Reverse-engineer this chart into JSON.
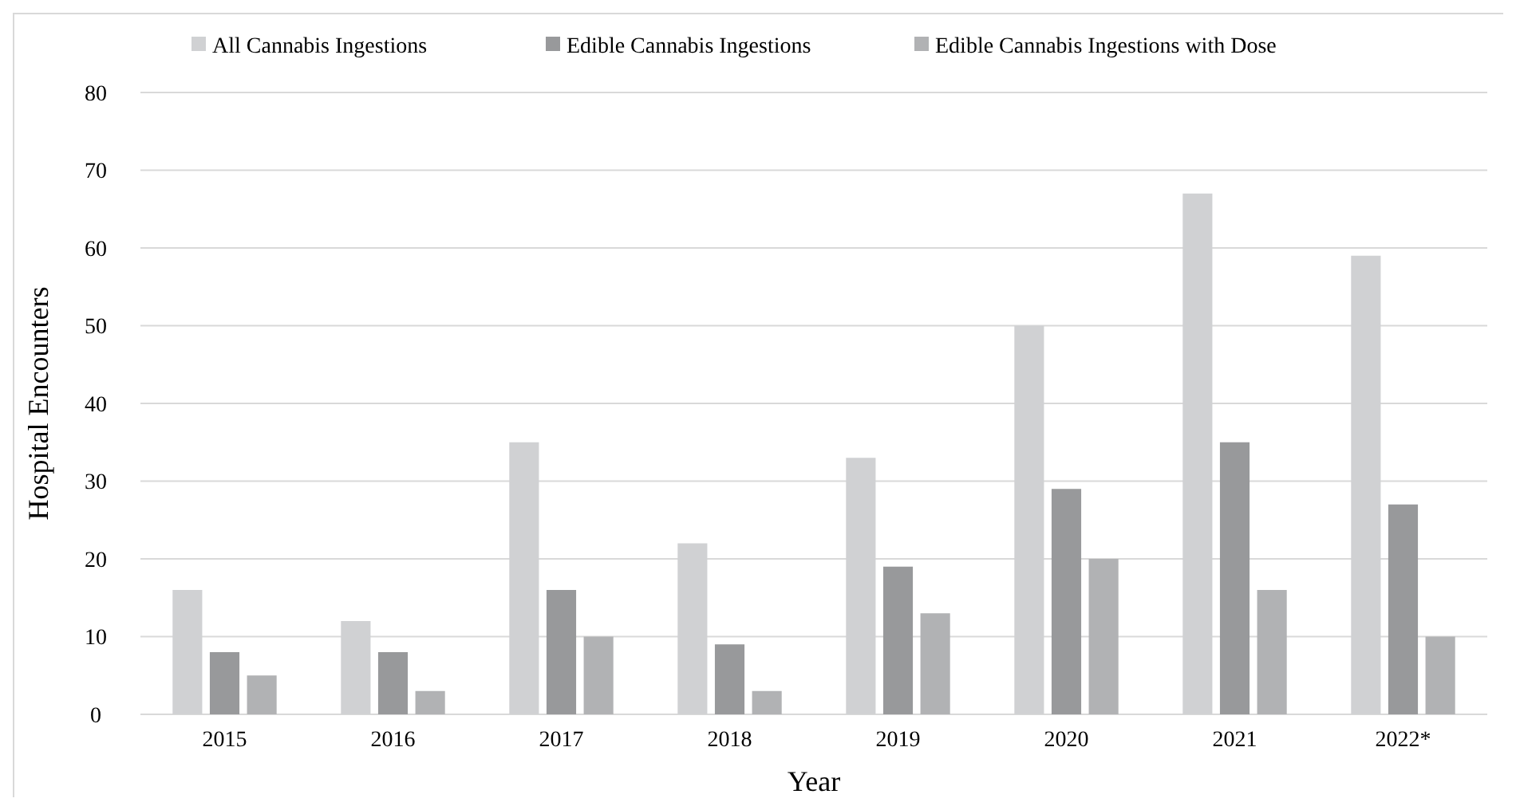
{
  "chart_data": {
    "type": "bar",
    "xlabel": "Year",
    "ylabel": "Hospital Encounters",
    "categories": [
      "2015",
      "2016",
      "2017",
      "2018",
      "2019",
      "2020",
      "2021",
      "2022*"
    ],
    "series": [
      {
        "name": "All Cannabis Ingestions",
        "color": "#d0d1d3",
        "values": [
          16,
          12,
          35,
          22,
          33,
          50,
          67,
          59
        ]
      },
      {
        "name": "Edible Cannabis Ingestions",
        "color": "#98999b",
        "values": [
          8,
          8,
          16,
          9,
          19,
          29,
          35,
          27
        ]
      },
      {
        "name": "Edible Cannabis Ingestions with Dose",
        "color": "#b1b2b4",
        "values": [
          5,
          3,
          10,
          3,
          13,
          20,
          16,
          10
        ]
      }
    ],
    "ylim": [
      0,
      80
    ],
    "yticks": [
      0,
      10,
      20,
      30,
      40,
      50,
      60,
      70,
      80
    ],
    "grid": "y",
    "legend": "top"
  }
}
